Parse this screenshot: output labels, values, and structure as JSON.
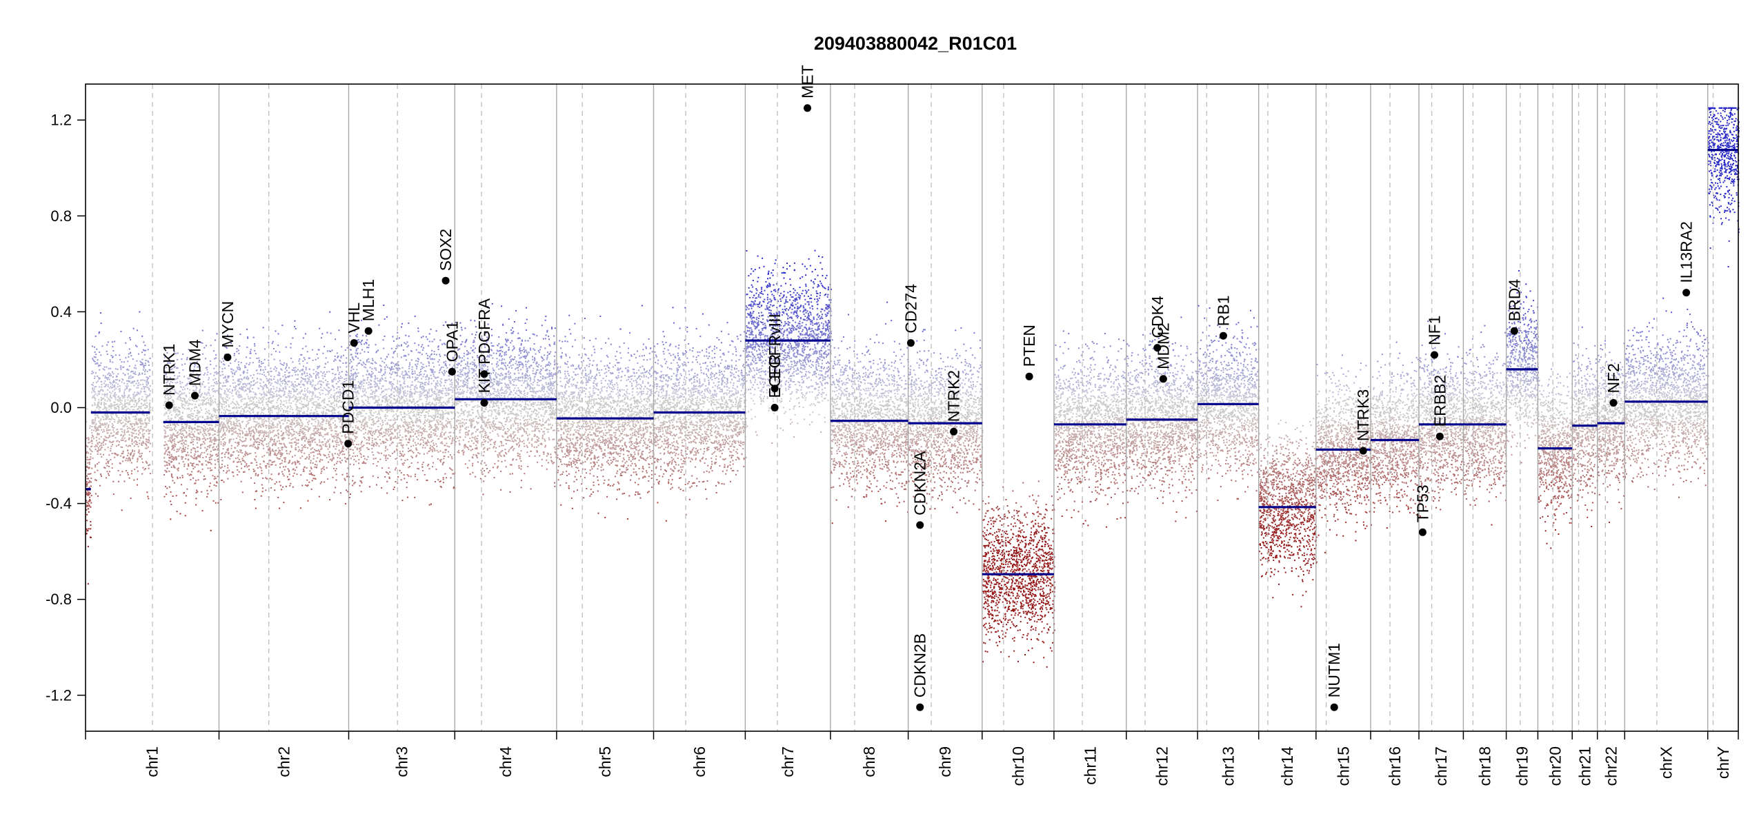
{
  "chart_data": {
    "type": "scatter",
    "title": "209403880042_R01C01",
    "xlabel": "",
    "ylabel": "",
    "ylim": [
      -1.35,
      1.35
    ],
    "y_ticks": [
      -1.2,
      -0.8,
      -0.4,
      0.0,
      0.4,
      0.8,
      1.2
    ],
    "y_tick_labels": [
      "-1.2",
      "-0.8",
      "-0.4",
      "0.0",
      "0.4",
      "0.8",
      "1.2"
    ],
    "grid": false,
    "legend": "none",
    "colors": {
      "gain": "#2b2bb8",
      "loss": "#9e1c1c",
      "neutral": "#b9b9b9",
      "segment": "#00008b",
      "gene": "#000000",
      "boundary": "#a8a8a8",
      "centromere": "#bdbdbd"
    },
    "chromosomes": [
      {
        "name": "chr1",
        "width": 249,
        "centromere": 125,
        "segments": [
          {
            "start": 0,
            "end": 10,
            "value": -0.34
          },
          {
            "start": 10,
            "end": 120,
            "value": -0.02
          },
          {
            "start": 145,
            "end": 249,
            "value": -0.06
          }
        ]
      },
      {
        "name": "chr2",
        "width": 242,
        "centromere": 93,
        "segments": [
          {
            "start": 0,
            "end": 242,
            "value": -0.035
          }
        ]
      },
      {
        "name": "chr3",
        "width": 198,
        "centromere": 91,
        "segments": [
          {
            "start": 0,
            "end": 198,
            "value": 0.0
          }
        ]
      },
      {
        "name": "chr4",
        "width": 190,
        "centromere": 50,
        "segments": [
          {
            "start": 0,
            "end": 190,
            "value": 0.035
          }
        ]
      },
      {
        "name": "chr5",
        "width": 181,
        "centromere": 48,
        "segments": [
          {
            "start": 0,
            "end": 181,
            "value": -0.045
          }
        ]
      },
      {
        "name": "chr6",
        "width": 171,
        "centromere": 60,
        "segments": [
          {
            "start": 0,
            "end": 171,
            "value": -0.02
          }
        ]
      },
      {
        "name": "chr7",
        "width": 159,
        "centromere": 60,
        "segments": [
          {
            "start": 0,
            "end": 159,
            "value": 0.28
          }
        ]
      },
      {
        "name": "chr8",
        "width": 145,
        "centromere": 45,
        "segments": [
          {
            "start": 0,
            "end": 145,
            "value": -0.055
          }
        ]
      },
      {
        "name": "chr9",
        "width": 138,
        "centromere": 43,
        "segments": [
          {
            "start": 0,
            "end": 138,
            "value": -0.065
          }
        ]
      },
      {
        "name": "chr10",
        "width": 134,
        "centromere": 40,
        "segments": [
          {
            "start": 0,
            "end": 134,
            "value": -0.695
          }
        ]
      },
      {
        "name": "chr11",
        "width": 135,
        "centromere": 53,
        "segments": [
          {
            "start": 0,
            "end": 135,
            "value": -0.07
          }
        ]
      },
      {
        "name": "chr12",
        "width": 133,
        "centromere": 35,
        "segments": [
          {
            "start": 0,
            "end": 133,
            "value": -0.05
          }
        ]
      },
      {
        "name": "chr13",
        "width": 114,
        "centromere": 17,
        "segments": [
          {
            "start": 0,
            "end": 114,
            "value": 0.015
          }
        ]
      },
      {
        "name": "chr14",
        "width": 107,
        "centromere": 17,
        "segments": [
          {
            "start": 0,
            "end": 107,
            "value": -0.415
          }
        ]
      },
      {
        "name": "chr15",
        "width": 102,
        "centromere": 19,
        "segments": [
          {
            "start": 0,
            "end": 102,
            "value": -0.175
          }
        ]
      },
      {
        "name": "chr16",
        "width": 90,
        "centromere": 36,
        "segments": [
          {
            "start": 0,
            "end": 90,
            "value": -0.135
          }
        ]
      },
      {
        "name": "chr17",
        "width": 83,
        "centromere": 24,
        "segments": [
          {
            "start": 0,
            "end": 83,
            "value": -0.07
          }
        ]
      },
      {
        "name": "chr18",
        "width": 80,
        "centromere": 18,
        "segments": [
          {
            "start": 0,
            "end": 80,
            "value": -0.07
          }
        ]
      },
      {
        "name": "chr19",
        "width": 59,
        "centromere": 26,
        "segments": [
          {
            "start": 0,
            "end": 59,
            "value": 0.16
          }
        ]
      },
      {
        "name": "chr20",
        "width": 64,
        "centromere": 28,
        "segments": [
          {
            "start": 0,
            "end": 64,
            "value": -0.17
          }
        ]
      },
      {
        "name": "chr21",
        "width": 47,
        "centromere": 12,
        "segments": [
          {
            "start": 0,
            "end": 47,
            "value": -0.075
          }
        ]
      },
      {
        "name": "chr22",
        "width": 51,
        "centromere": 15,
        "segments": [
          {
            "start": 0,
            "end": 51,
            "value": -0.065
          }
        ]
      },
      {
        "name": "chrX",
        "width": 155,
        "centromere": 60,
        "segments": [
          {
            "start": 0,
            "end": 155,
            "value": 0.025
          }
        ]
      },
      {
        "name": "chrY",
        "width": 57,
        "centromere": 10,
        "segments": [
          {
            "start": 0,
            "end": 57,
            "value": 1.075
          }
        ]
      }
    ],
    "genes": [
      {
        "name": "NTRK1",
        "chrom": "chr1",
        "pos": 156,
        "value": 0.01
      },
      {
        "name": "MDM4",
        "chrom": "chr1",
        "pos": 204,
        "value": 0.05
      },
      {
        "name": "MYCN",
        "chrom": "chr2",
        "pos": 16,
        "value": 0.21
      },
      {
        "name": "PDCD1",
        "chrom": "chr2",
        "pos": 241,
        "value": -0.15
      },
      {
        "name": "VHL",
        "chrom": "chr3",
        "pos": 10,
        "value": 0.27
      },
      {
        "name": "MLH1",
        "chrom": "chr3",
        "pos": 37,
        "value": 0.32
      },
      {
        "name": "SOX2",
        "chrom": "chr3",
        "pos": 181,
        "value": 0.53
      },
      {
        "name": "OPA1",
        "chrom": "chr3",
        "pos": 193,
        "value": 0.15
      },
      {
        "name": "KIT",
        "chrom": "chr4",
        "pos": 55,
        "value": 0.02
      },
      {
        "name": "PDGFRA",
        "chrom": "chr4",
        "pos": 55,
        "value": 0.14
      },
      {
        "name": "EGFR",
        "chrom": "chr7",
        "pos": 55,
        "value": 0.0
      },
      {
        "name": "EGFRvIII",
        "chrom": "chr7",
        "pos": 55,
        "value": 0.08
      },
      {
        "name": "MET",
        "chrom": "chr7",
        "pos": 116,
        "value": 1.25
      },
      {
        "name": "CD274",
        "chrom": "chr9",
        "pos": 5,
        "value": 0.27
      },
      {
        "name": "CDKN2A",
        "chrom": "chr9",
        "pos": 22,
        "value": -0.49
      },
      {
        "name": "CDKN2B",
        "chrom": "chr9",
        "pos": 22,
        "value": -1.25
      },
      {
        "name": "NTRK2",
        "chrom": "chr9",
        "pos": 85,
        "value": -0.1
      },
      {
        "name": "PTEN",
        "chrom": "chr10",
        "pos": 88,
        "value": 0.13
      },
      {
        "name": "CDK4",
        "chrom": "chr12",
        "pos": 58,
        "value": 0.25
      },
      {
        "name": "MDM2",
        "chrom": "chr12",
        "pos": 69,
        "value": 0.12
      },
      {
        "name": "RB1",
        "chrom": "chr13",
        "pos": 48,
        "value": 0.3
      },
      {
        "name": "NUTM1",
        "chrom": "chr15",
        "pos": 34,
        "value": -1.25
      },
      {
        "name": "NTRK3",
        "chrom": "chr15",
        "pos": 88,
        "value": -0.18
      },
      {
        "name": "TP53",
        "chrom": "chr17",
        "pos": 7,
        "value": -0.52
      },
      {
        "name": "NF1",
        "chrom": "chr17",
        "pos": 29,
        "value": 0.22
      },
      {
        "name": "ERBB2",
        "chrom": "chr17",
        "pos": 39,
        "value": -0.12
      },
      {
        "name": "BRD4",
        "chrom": "chr19",
        "pos": 15,
        "value": 0.32
      },
      {
        "name": "NF2",
        "chrom": "chr22",
        "pos": 30,
        "value": 0.02
      },
      {
        "name": "IL13RA2",
        "chrom": "chrX",
        "pos": 115,
        "value": 0.48
      }
    ]
  }
}
